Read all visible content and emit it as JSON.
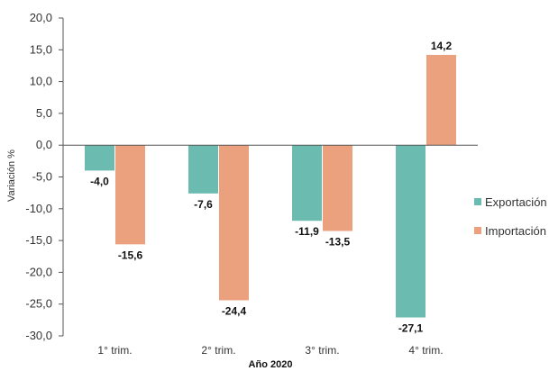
{
  "chart_data": {
    "type": "bar",
    "categories": [
      "1° trim.",
      "2° trim.",
      "3° trim.",
      "4° trim."
    ],
    "series": [
      {
        "name": "Exportación",
        "values": [
          -4.0,
          -7.6,
          -11.9,
          -27.1
        ],
        "labels": [
          "-4,0",
          "-7,6",
          "-11,9",
          "-27,1"
        ],
        "color": "#6cbbb0"
      },
      {
        "name": "Importación",
        "values": [
          -15.6,
          -24.4,
          -13.5,
          14.2
        ],
        "labels": [
          "-15,6",
          "-24,4",
          "-13,5",
          "14,2"
        ],
        "color": "#eba07e"
      }
    ],
    "ylabel": "Variación %",
    "xlabel": "Año 2020",
    "ylim": [
      -30,
      20
    ],
    "yticks": [
      20,
      15,
      10,
      5,
      0,
      -5,
      -10,
      -15,
      -20,
      -25,
      -30
    ],
    "ytick_labels": [
      "20,0",
      "15,0",
      "10,0",
      "5,0",
      "0,0",
      "-5,0",
      "-10,0",
      "-15,0",
      "-20,0",
      "-25,0",
      "-30,0"
    ],
    "legend_position": "right",
    "grid": false
  }
}
